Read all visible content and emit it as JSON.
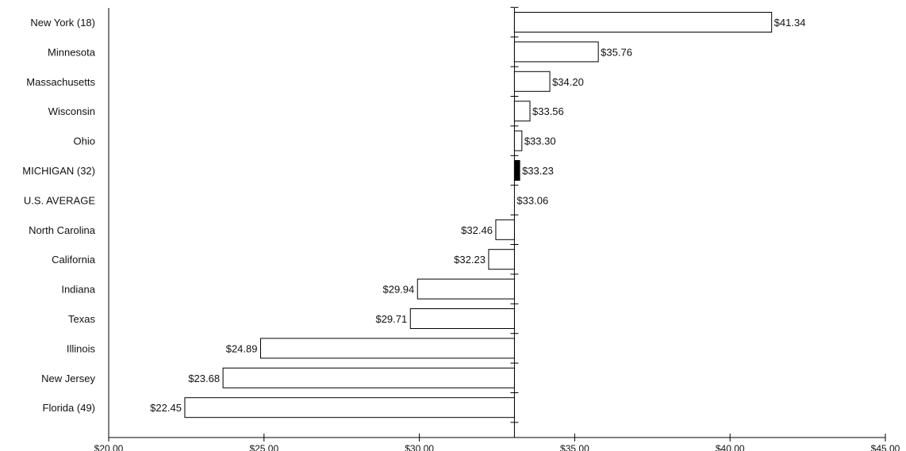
{
  "chart_data": {
    "type": "bar",
    "orientation": "horizontal",
    "baseline": 33.06,
    "categories": [
      "New York (18)",
      "Minnesota",
      "Massachusetts",
      "Wisconsin",
      "Ohio",
      "MICHIGAN (32)",
      "U.S. AVERAGE",
      "North Carolina",
      "California",
      "Indiana",
      "Texas",
      "Illinois",
      "New Jersey",
      "Florida (49)"
    ],
    "values": [
      41.34,
      35.76,
      34.2,
      33.56,
      33.3,
      33.23,
      33.06,
      32.46,
      32.23,
      29.94,
      29.71,
      24.89,
      23.68,
      22.45
    ],
    "value_labels": [
      "$41.34",
      "$35.76",
      "$34.20",
      "$33.56",
      "$33.30",
      "$33.23",
      "$33.06",
      "$32.46",
      "$32.23",
      "$29.94",
      "$29.71",
      "$24.89",
      "$23.68",
      "$22.45"
    ],
    "highlight": "MICHIGAN (32)",
    "xlim": [
      20,
      45
    ],
    "xticks": [
      20,
      25,
      30,
      35,
      40,
      45
    ],
    "xtick_labels": [
      "$20.00",
      "$25.00",
      "$30.00",
      "$35.00",
      "$40.00",
      "$45.00"
    ],
    "title": "",
    "xlabel": "",
    "ylabel": "",
    "grid": false,
    "colors": {
      "bar_fill": "#ffffff",
      "bar_stroke": "#000000",
      "highlight_fill": "#000000"
    }
  }
}
